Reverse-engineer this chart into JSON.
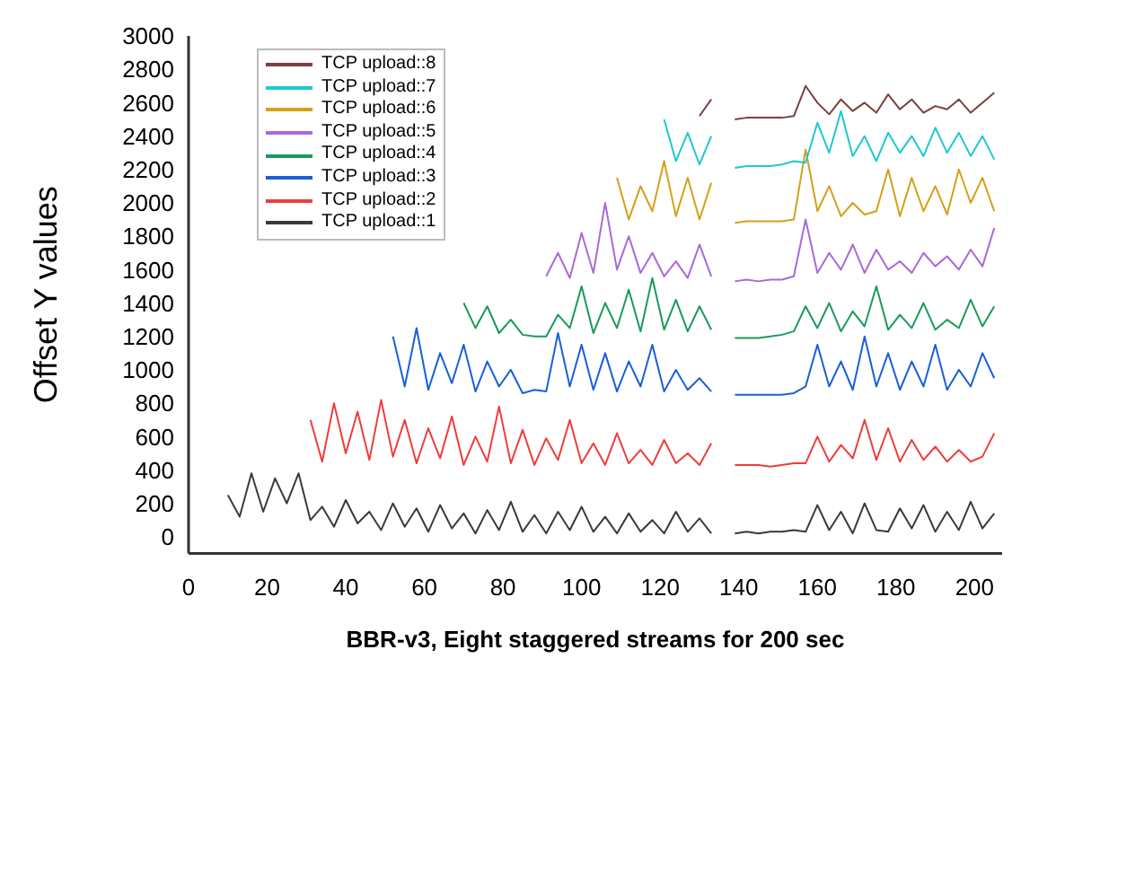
{
  "chart_data": {
    "type": "line",
    "xlabel": "BBR-v3, Eight staggered streams for 200 sec",
    "ylabel": "Offset Y values",
    "xlim": [
      0,
      207
    ],
    "xticks": [
      0,
      20,
      40,
      60,
      80,
      100,
      120,
      140,
      160,
      180,
      200
    ],
    "ylim": [
      -100,
      3000
    ],
    "yticks": [
      0,
      200,
      400,
      600,
      800,
      1000,
      1200,
      1400,
      1600,
      1800,
      2000,
      2200,
      2400,
      2600,
      2800,
      3000
    ],
    "legend": "top left",
    "marker": "none",
    "x": [
      10,
      13,
      16,
      19,
      22,
      25,
      28,
      31,
      34,
      37,
      40,
      43,
      46,
      49,
      52,
      55,
      58,
      61,
      64,
      67,
      70,
      73,
      76,
      79,
      82,
      85,
      88,
      91,
      94,
      97,
      100,
      103,
      106,
      109,
      112,
      115,
      118,
      121,
      124,
      127,
      130,
      133,
      136,
      139,
      142,
      145,
      148,
      151,
      154,
      157,
      160,
      163,
      166,
      169,
      172,
      175,
      178,
      181,
      184,
      187,
      190,
      193,
      196,
      199,
      202,
      205
    ],
    "series": [
      {
        "name": "TCP upload::1",
        "color": "#3a3a3a",
        "values": [
          250,
          120,
          380,
          150,
          350,
          200,
          380,
          100,
          180,
          60,
          220,
          80,
          150,
          40,
          200,
          60,
          170,
          30,
          190,
          50,
          140,
          20,
          160,
          40,
          210,
          30,
          130,
          20,
          150,
          40,
          180,
          30,
          120,
          20,
          140,
          30,
          100,
          20,
          150,
          30,
          110,
          20,
          null,
          20,
          30,
          20,
          30,
          30,
          40,
          30,
          190,
          40,
          150,
          20,
          200,
          40,
          30,
          170,
          50,
          190,
          30,
          150,
          40,
          210,
          50,
          140
        ]
      },
      {
        "name": "TCP upload::2",
        "color": "#f03c3c",
        "values": [
          null,
          null,
          null,
          null,
          null,
          null,
          null,
          700,
          450,
          800,
          500,
          750,
          460,
          820,
          480,
          700,
          440,
          650,
          470,
          720,
          430,
          600,
          450,
          780,
          440,
          640,
          430,
          590,
          460,
          700,
          440,
          560,
          430,
          620,
          440,
          520,
          430,
          580,
          440,
          500,
          430,
          560,
          null,
          430,
          430,
          430,
          420,
          430,
          440,
          440,
          600,
          450,
          550,
          470,
          700,
          460,
          650,
          450,
          580,
          460,
          540,
          450,
          520,
          450,
          480,
          620
        ]
      },
      {
        "name": "TCP upload::3",
        "color": "#1a5fd8",
        "values": [
          null,
          null,
          null,
          null,
          null,
          null,
          null,
          null,
          null,
          null,
          null,
          null,
          null,
          null,
          1200,
          900,
          1250,
          880,
          1100,
          920,
          1150,
          870,
          1050,
          900,
          1000,
          860,
          880,
          870,
          1220,
          900,
          1150,
          880,
          1100,
          870,
          1050,
          900,
          1150,
          870,
          1000,
          880,
          950,
          870,
          null,
          850,
          850,
          850,
          850,
          850,
          860,
          900,
          1150,
          900,
          1050,
          880,
          1200,
          900,
          1100,
          880,
          1050,
          900,
          1150,
          880,
          1000,
          900,
          1100,
          950
        ]
      },
      {
        "name": "TCP upload::4",
        "color": "#1a9a5a",
        "values": [
          null,
          null,
          null,
          null,
          null,
          null,
          null,
          null,
          null,
          null,
          null,
          null,
          null,
          null,
          null,
          null,
          null,
          null,
          null,
          null,
          1400,
          1250,
          1380,
          1220,
          1300,
          1210,
          1200,
          1200,
          1330,
          1250,
          1500,
          1220,
          1400,
          1250,
          1480,
          1230,
          1550,
          1240,
          1420,
          1230,
          1380,
          1240,
          null,
          1190,
          1190,
          1190,
          1200,
          1210,
          1230,
          1380,
          1250,
          1400,
          1230,
          1350,
          1260,
          1500,
          1240,
          1330,
          1250,
          1400,
          1240,
          1300,
          1250,
          1420,
          1260,
          1380
        ]
      },
      {
        "name": "TCP upload::5",
        "color": "#a86ad8",
        "values": [
          null,
          null,
          null,
          null,
          null,
          null,
          null,
          null,
          null,
          null,
          null,
          null,
          null,
          null,
          null,
          null,
          null,
          null,
          null,
          null,
          null,
          null,
          null,
          null,
          null,
          null,
          null,
          1560,
          1700,
          1550,
          1820,
          1580,
          2000,
          1600,
          1800,
          1580,
          1700,
          1560,
          1650,
          1550,
          1750,
          1560,
          null,
          1530,
          1540,
          1530,
          1540,
          1540,
          1560,
          1900,
          1580,
          1700,
          1600,
          1750,
          1580,
          1720,
          1600,
          1650,
          1580,
          1700,
          1620,
          1680,
          1600,
          1720,
          1620,
          1850
        ]
      },
      {
        "name": "TCP upload::6",
        "color": "#d4a017",
        "values": [
          null,
          null,
          null,
          null,
          null,
          null,
          null,
          null,
          null,
          null,
          null,
          null,
          null,
          null,
          null,
          null,
          null,
          null,
          null,
          null,
          null,
          null,
          null,
          null,
          null,
          null,
          null,
          null,
          null,
          null,
          null,
          null,
          null,
          2150,
          1900,
          2100,
          1950,
          2250,
          1920,
          2150,
          1900,
          2120,
          null,
          1880,
          1890,
          1890,
          1890,
          1890,
          1900,
          2320,
          1950,
          2100,
          1920,
          2000,
          1930,
          1950,
          2200,
          1920,
          2150,
          1950,
          2100,
          1930,
          2200,
          2000,
          2150,
          1950
        ]
      },
      {
        "name": "TCP upload::7",
        "color": "#1ec8d0",
        "values": [
          null,
          null,
          null,
          null,
          null,
          null,
          null,
          null,
          null,
          null,
          null,
          null,
          null,
          null,
          null,
          null,
          null,
          null,
          null,
          null,
          null,
          null,
          null,
          null,
          null,
          null,
          null,
          null,
          null,
          null,
          null,
          null,
          null,
          null,
          null,
          null,
          null,
          2500,
          2250,
          2420,
          2230,
          2400,
          null,
          2210,
          2220,
          2220,
          2220,
          2230,
          2250,
          2240,
          2480,
          2300,
          2550,
          2280,
          2400,
          2250,
          2420,
          2300,
          2400,
          2280,
          2450,
          2300,
          2420,
          2280,
          2400,
          2260
        ]
      },
      {
        "name": "TCP upload::8",
        "color": "#7a4040",
        "values": [
          null,
          null,
          null,
          null,
          null,
          null,
          null,
          null,
          null,
          null,
          null,
          null,
          null,
          null,
          null,
          null,
          null,
          null,
          null,
          null,
          null,
          null,
          null,
          null,
          null,
          null,
          null,
          null,
          null,
          null,
          null,
          null,
          null,
          null,
          null,
          null,
          null,
          null,
          null,
          null,
          2520,
          2620,
          null,
          2500,
          2510,
          2510,
          2510,
          2510,
          2520,
          2700,
          2600,
          2530,
          2620,
          2550,
          2600,
          2540,
          2650,
          2560,
          2620,
          2540,
          2580,
          2560,
          2620,
          2540,
          2600,
          2660
        ]
      }
    ]
  }
}
